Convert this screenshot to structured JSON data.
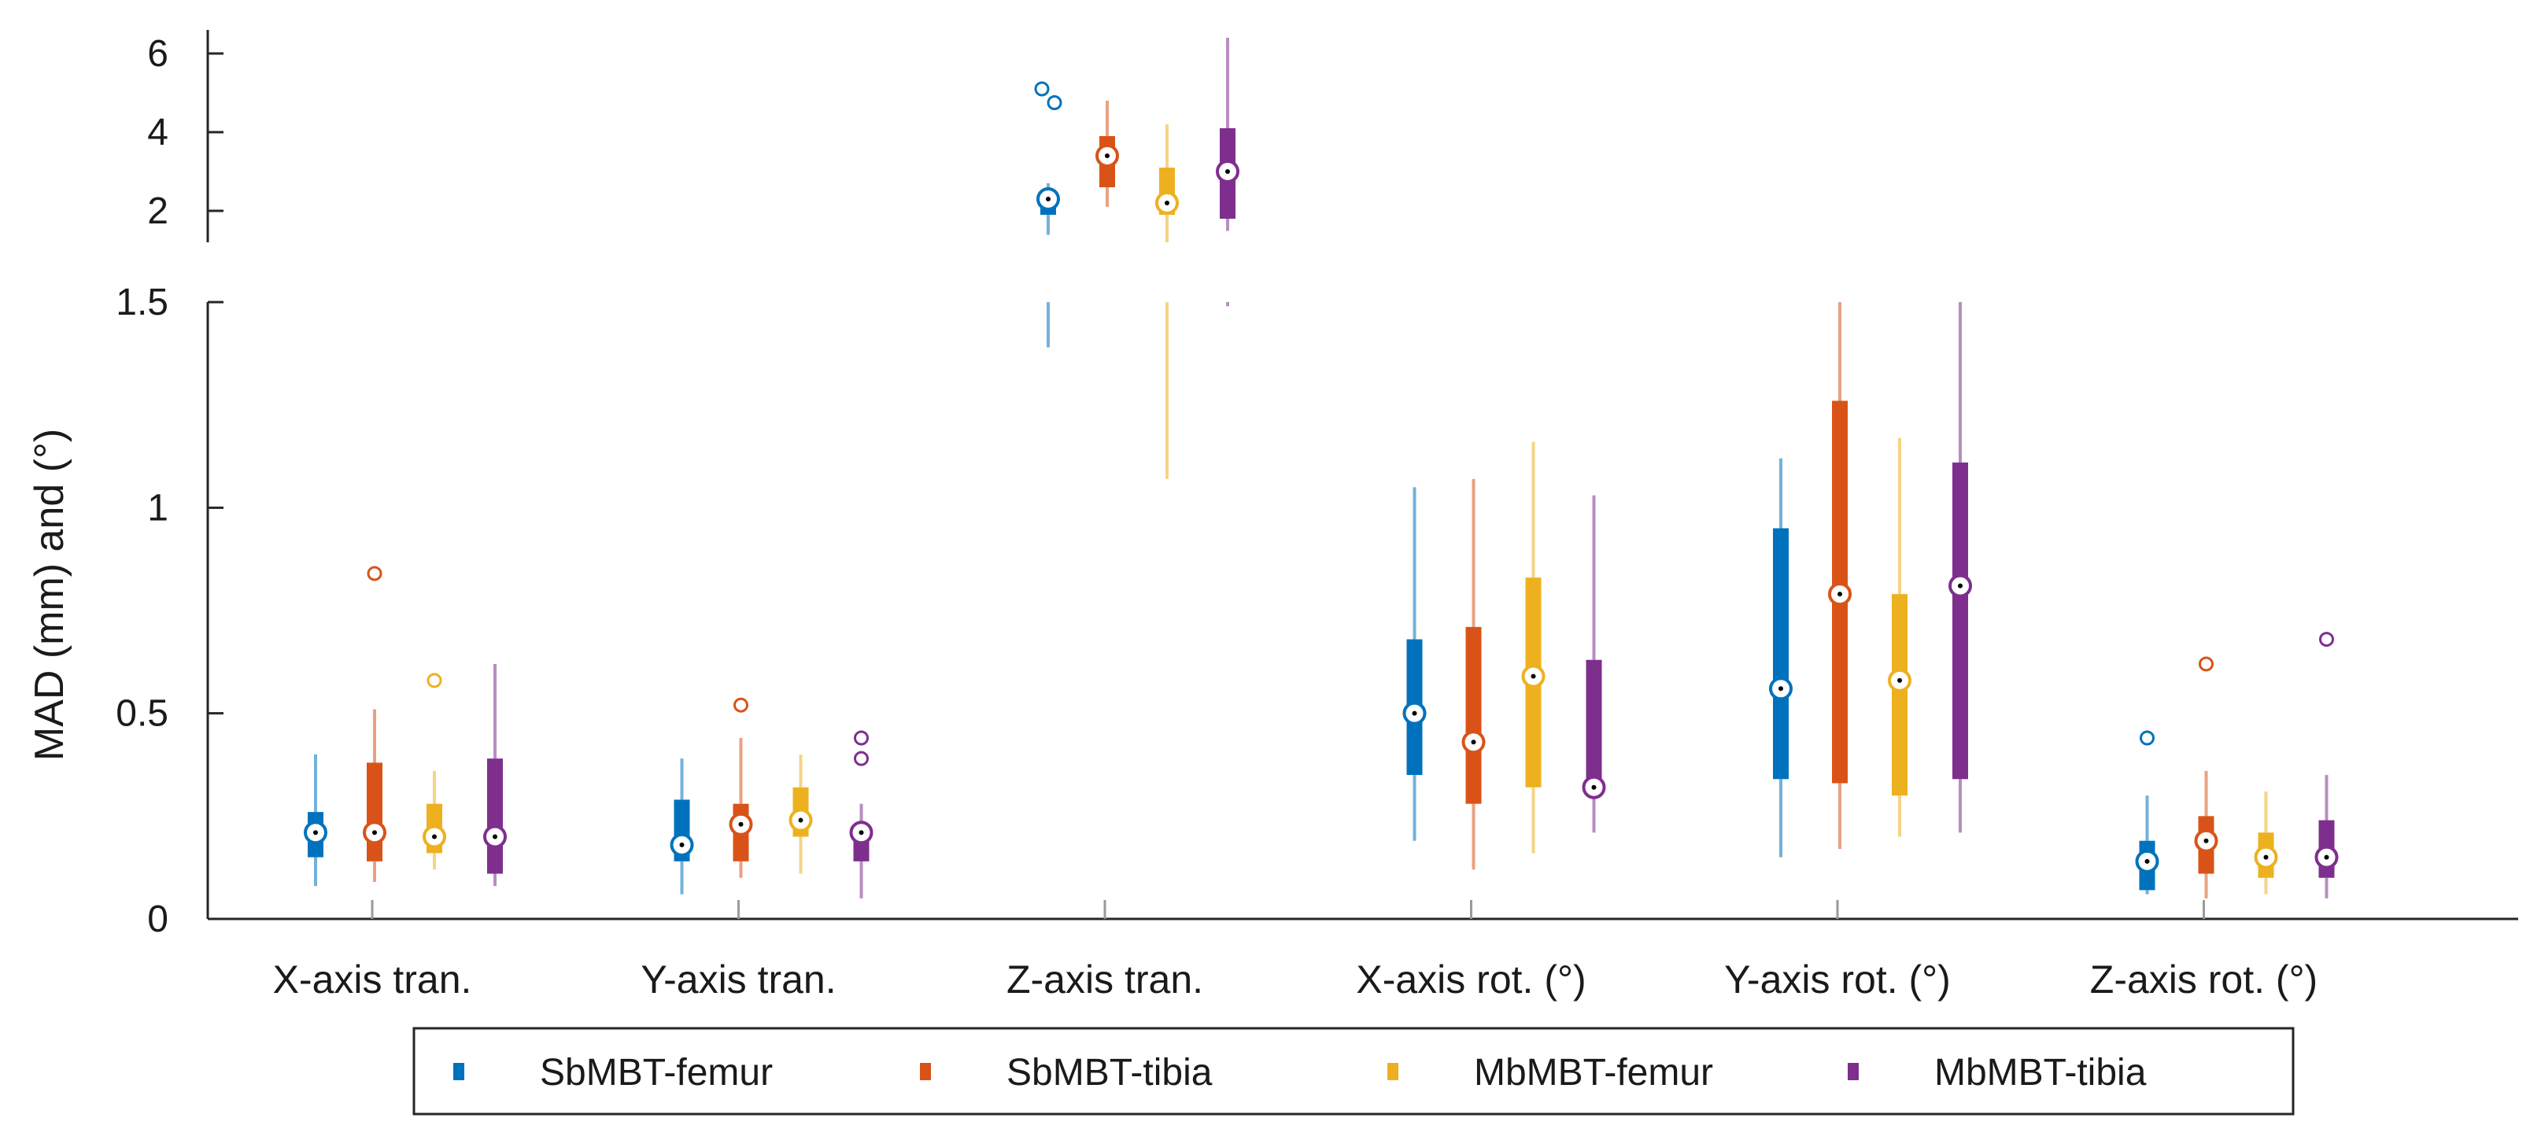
{
  "chart_data": {
    "type": "boxplot",
    "ylabel": "MAD (mm) and (°)",
    "categories": [
      "X-axis tran.",
      "Y-axis tran.",
      "Z-axis tran.",
      "X-axis rot. (°)",
      "Y-axis rot. (°)",
      "Z-axis rot. (°)"
    ],
    "lower_axis": {
      "ylim": [
        0,
        1.5
      ],
      "ticks": [
        0,
        0.5,
        1,
        1.5
      ],
      "tick_labels": [
        "0",
        "0.5",
        "1",
        "1.5"
      ]
    },
    "upper_axis": {
      "ylim": [
        1.2,
        6.6
      ],
      "ticks": [
        2,
        4,
        6
      ],
      "tick_labels": [
        "2",
        "4",
        "6"
      ]
    },
    "series": [
      {
        "name": "SbMBT-femur",
        "color": "#0072BD",
        "boxes": [
          {
            "whisker_low": 0.08,
            "q1": 0.15,
            "median": 0.21,
            "q3": 0.26,
            "whisker_high": 0.4,
            "outliers": []
          },
          {
            "whisker_low": 0.06,
            "q1": 0.14,
            "median": 0.18,
            "q3": 0.29,
            "whisker_high": 0.39,
            "outliers": []
          },
          {
            "whisker_low": 1.39,
            "q1": 1.9,
            "median": 2.3,
            "q3": 2.5,
            "whisker_high": 2.7,
            "outliers": [
              5.1,
              4.75
            ]
          },
          {
            "whisker_low": 0.19,
            "q1": 0.35,
            "median": 0.5,
            "q3": 0.68,
            "whisker_high": 1.05,
            "outliers": []
          },
          {
            "whisker_low": 0.15,
            "q1": 0.34,
            "median": 0.56,
            "q3": 0.95,
            "whisker_high": 1.12,
            "outliers": []
          },
          {
            "whisker_low": 0.06,
            "q1": 0.07,
            "median": 0.14,
            "q3": 0.19,
            "whisker_high": 0.3,
            "outliers": [
              0.44
            ]
          }
        ]
      },
      {
        "name": "SbMBT-tibia",
        "color": "#D95319",
        "boxes": [
          {
            "whisker_low": 0.09,
            "q1": 0.14,
            "median": 0.21,
            "q3": 0.38,
            "whisker_high": 0.51,
            "outliers": [
              0.84
            ]
          },
          {
            "whisker_low": 0.1,
            "q1": 0.14,
            "median": 0.23,
            "q3": 0.28,
            "whisker_high": 0.44,
            "outliers": [
              0.52
            ]
          },
          {
            "whisker_low": 2.1,
            "q1": 2.6,
            "median": 3.4,
            "q3": 3.9,
            "whisker_high": 4.8,
            "outliers": []
          },
          {
            "whisker_low": 0.12,
            "q1": 0.28,
            "median": 0.43,
            "q3": 0.71,
            "whisker_high": 1.07,
            "outliers": []
          },
          {
            "whisker_low": 0.17,
            "q1": 0.33,
            "median": 0.79,
            "q3": 1.26,
            "whisker_high": 1.5,
            "outliers": []
          },
          {
            "whisker_low": 0.05,
            "q1": 0.11,
            "median": 0.19,
            "q3": 0.25,
            "whisker_high": 0.36,
            "outliers": [
              0.62
            ]
          }
        ]
      },
      {
        "name": "MbMBT-femur",
        "color": "#EDB120",
        "boxes": [
          {
            "whisker_low": 0.12,
            "q1": 0.16,
            "median": 0.2,
            "q3": 0.28,
            "whisker_high": 0.36,
            "outliers": [
              0.58
            ]
          },
          {
            "whisker_low": 0.11,
            "q1": 0.2,
            "median": 0.24,
            "q3": 0.32,
            "whisker_high": 0.4,
            "outliers": []
          },
          {
            "whisker_low": 1.07,
            "q1": 1.9,
            "median": 2.2,
            "q3": 3.1,
            "whisker_high": 4.2,
            "outliers": []
          },
          {
            "whisker_low": 0.16,
            "q1": 0.32,
            "median": 0.59,
            "q3": 0.83,
            "whisker_high": 1.16,
            "outliers": []
          },
          {
            "whisker_low": 0.2,
            "q1": 0.3,
            "median": 0.58,
            "q3": 0.79,
            "whisker_high": 1.17,
            "outliers": []
          },
          {
            "whisker_low": 0.06,
            "q1": 0.1,
            "median": 0.15,
            "q3": 0.21,
            "whisker_high": 0.31,
            "outliers": []
          }
        ]
      },
      {
        "name": "MbMBT-tibia",
        "color": "#7E2F8E",
        "boxes": [
          {
            "whisker_low": 0.08,
            "q1": 0.11,
            "median": 0.2,
            "q3": 0.39,
            "whisker_high": 0.62,
            "outliers": []
          },
          {
            "whisker_low": 0.05,
            "q1": 0.14,
            "median": 0.21,
            "q3": 0.22,
            "whisker_high": 0.28,
            "outliers": [
              0.44,
              0.39
            ]
          },
          {
            "whisker_low": 1.49,
            "q1": 1.8,
            "median": 3.0,
            "q3": 4.1,
            "whisker_high": 6.4,
            "outliers": []
          },
          {
            "whisker_low": 0.21,
            "q1": 0.32,
            "median": 0.32,
            "q3": 0.63,
            "whisker_high": 1.03,
            "outliers": []
          },
          {
            "whisker_low": 0.21,
            "q1": 0.34,
            "median": 0.81,
            "q3": 1.11,
            "whisker_high": 1.5,
            "outliers": []
          },
          {
            "whisker_low": 0.05,
            "q1": 0.1,
            "median": 0.15,
            "q3": 0.24,
            "whisker_high": 0.35,
            "outliers": [
              0.68
            ]
          }
        ]
      }
    ],
    "legend": {
      "position": "bottom-center",
      "entries": [
        "SbMBT-femur",
        "SbMBT-tibia",
        "MbMBT-femur",
        "MbMBT-tibia"
      ]
    }
  }
}
